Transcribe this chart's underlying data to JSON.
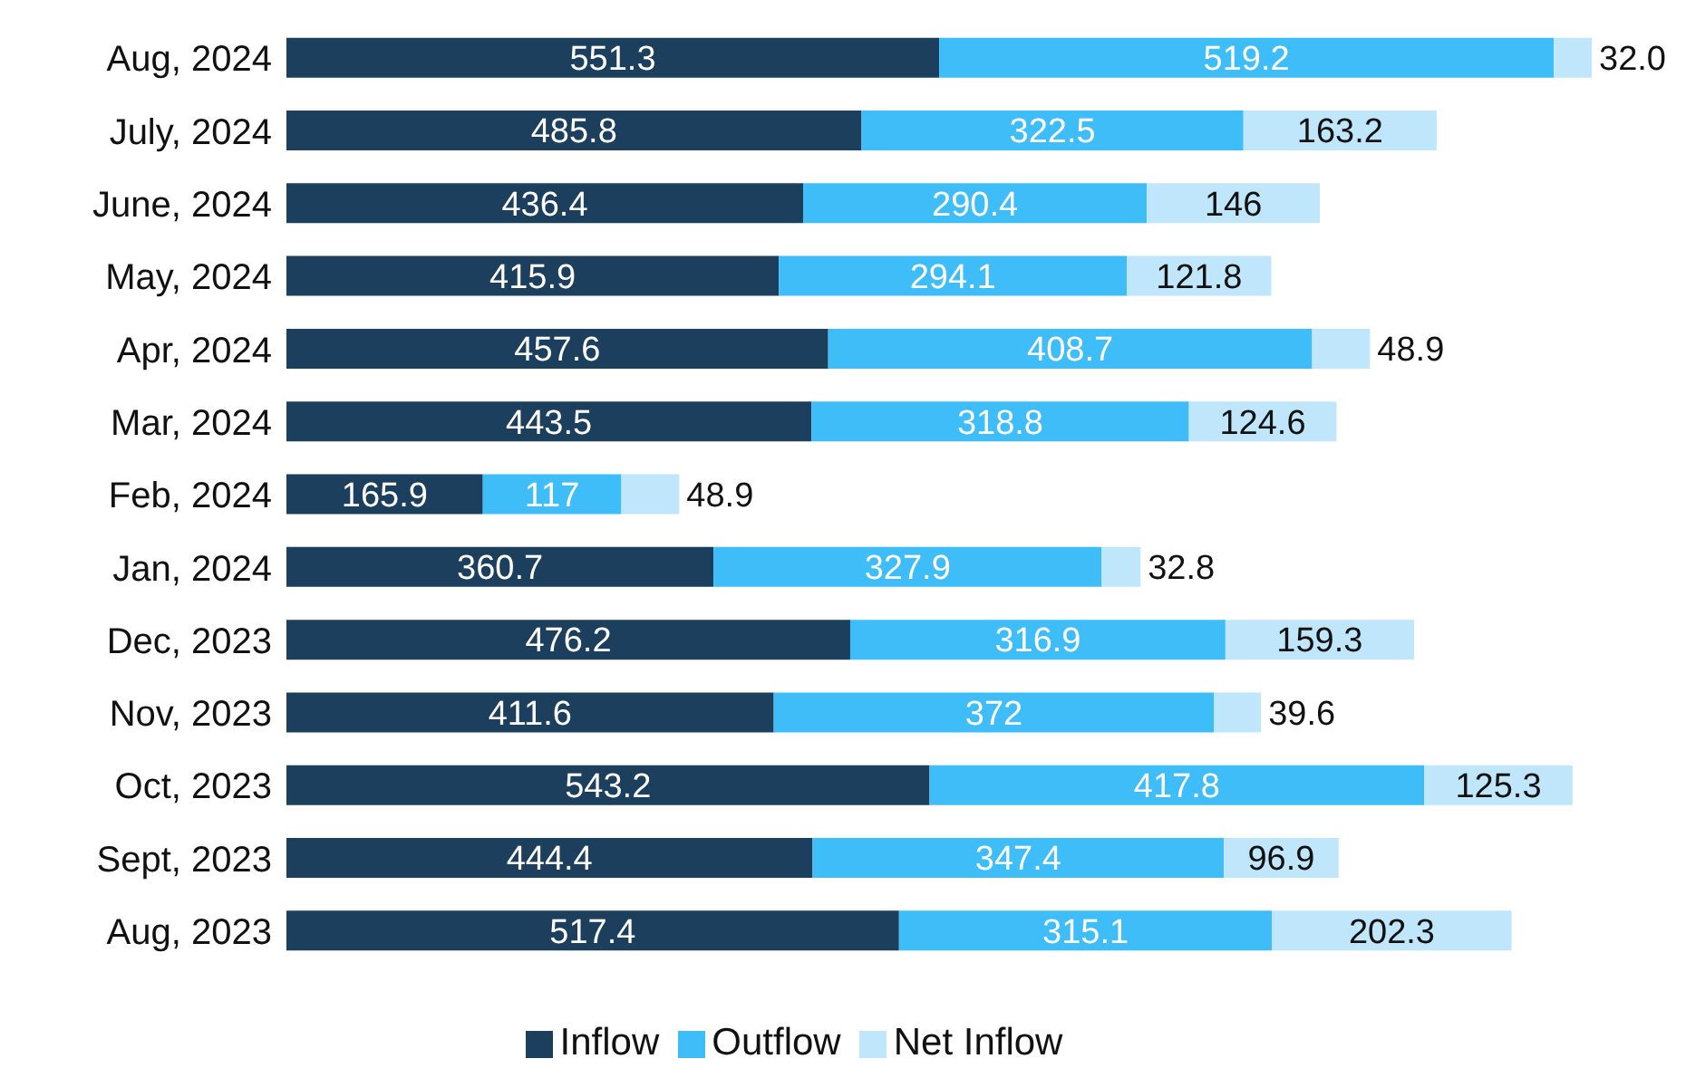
{
  "chart_data": {
    "type": "bar",
    "orientation": "horizontal",
    "stacked": true,
    "legend": "bottom",
    "grid": false,
    "categories": [
      "Aug, 2024",
      "July, 2024",
      "June, 2024",
      "May, 2024",
      "Apr, 2024",
      "Mar, 2024",
      "Feb, 2024",
      "Jan, 2024",
      "Dec, 2023",
      "Nov, 2023",
      "Oct, 2023",
      "Sept, 2023",
      "Aug, 2023"
    ],
    "series": [
      {
        "name": "Inflow",
        "color": "#1d3f5e",
        "values": [
          551.3,
          485.8,
          436.4,
          415.9,
          457.6,
          443.5,
          165.9,
          360.7,
          476.2,
          411.6,
          543.2,
          444.4,
          517.4
        ],
        "value_labels": [
          "551.3",
          "485.8",
          "436.4",
          "415.9",
          "457.6",
          "443.5",
          "165.9",
          "360.7",
          "476.2",
          "411.6",
          "543.2",
          "444.4",
          "517.4"
        ]
      },
      {
        "name": "Outflow",
        "color": "#3fbdf8",
        "values": [
          519.2,
          322.5,
          290.4,
          294.1,
          408.7,
          318.8,
          117,
          327.9,
          316.9,
          372,
          417.8,
          347.4,
          315.1
        ],
        "value_labels": [
          "519.2",
          "322.5",
          "290.4",
          "294.1",
          "408.7",
          "318.8",
          "117",
          "327.9",
          "316.9",
          "372",
          "417.8",
          "347.4",
          "315.1"
        ]
      },
      {
        "name": "Net Inflow",
        "color": "#bfe6fb",
        "values": [
          32.0,
          163.2,
          146,
          121.8,
          48.9,
          124.6,
          48.9,
          32.8,
          159.3,
          39.6,
          125.3,
          96.9,
          202.3
        ],
        "value_labels": [
          "32.0",
          "163.2",
          "146",
          "121.8",
          "48.9",
          "124.6",
          "48.9",
          "32.8",
          "159.3",
          "39.6",
          "125.3",
          "96.9",
          "202.3"
        ]
      }
    ]
  }
}
